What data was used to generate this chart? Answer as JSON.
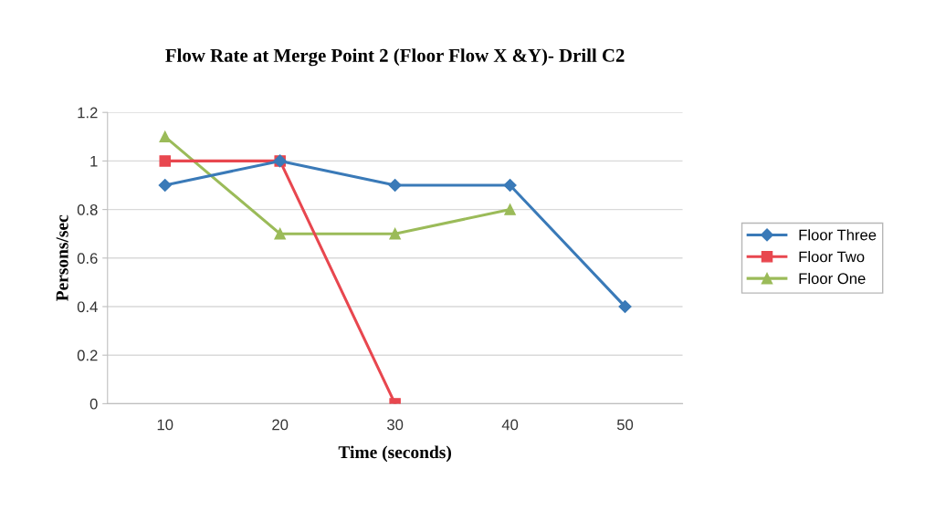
{
  "chart_data": {
    "type": "line",
    "title": "Flow Rate at Merge Point 2 (Floor Flow X &Y)- Drill C2",
    "xlabel": "Time (seconds)",
    "ylabel": "Persons/sec",
    "categories": [
      "10",
      "20",
      "30",
      "40",
      "50"
    ],
    "series": [
      {
        "name": "Floor Three",
        "color": "#3a7ab8",
        "marker": "diamond",
        "values": [
          0.9,
          1,
          0.9,
          0.9,
          0.4
        ]
      },
      {
        "name": "Floor Two",
        "color": "#e8474f",
        "marker": "square",
        "values": [
          1,
          1,
          0,
          null,
          null
        ]
      },
      {
        "name": "Floor One",
        "color": "#9bbb59",
        "marker": "triangle",
        "values": [
          1.1,
          0.7,
          0.7,
          0.8,
          null
        ]
      }
    ],
    "ylim": [
      0,
      1.2
    ],
    "yticks": [
      0,
      0.2,
      0.4,
      0.6,
      0.8,
      1,
      1.2
    ],
    "grid": "y",
    "legend": "right"
  }
}
